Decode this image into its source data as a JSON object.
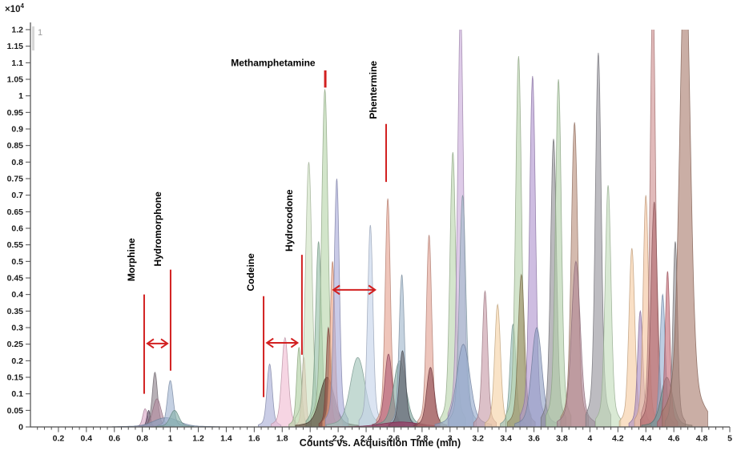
{
  "chart_data": {
    "type": "area",
    "title": "",
    "pane_label": "1",
    "x": {
      "min": 0,
      "max": 5,
      "major_step": 0.2,
      "minor_step": 0.05,
      "label": "Counts vs. Acquisition Time (min)"
    },
    "y": {
      "min": 0,
      "max": 1.2,
      "major_step": 0.05
    },
    "y_scale": {
      "mantissa": "×10",
      "exponent": "4"
    },
    "x_tick_labels": [
      "0.2",
      "0.4",
      "0.6",
      "0.8",
      "1",
      "1.2",
      "1.4",
      "1.6",
      "1.8",
      "2",
      "2.2",
      "2.4",
      "2.6",
      "2.8",
      "3",
      "3.2",
      "3.4",
      "3.6",
      "3.8",
      "4",
      "4.2",
      "4.4",
      "4.6",
      "4.8",
      "5"
    ],
    "y_tick_labels": [
      "0",
      "0.05",
      "0.1",
      "0.15",
      "0.2",
      "0.25",
      "0.3",
      "0.35",
      "0.4",
      "0.45",
      "0.5",
      "0.55",
      "0.6",
      "0.65",
      "0.7",
      "0.75",
      "0.8",
      "0.85",
      "0.9",
      "0.95",
      "1",
      "1.05",
      "1.1",
      "1.15",
      "1.2"
    ],
    "annotation_color": "#d22020",
    "axis_color": "#4d4d4d",
    "peaks": [
      {
        "t": 0.82,
        "h": 0.055,
        "s": 0.016,
        "c": "#d9a7c6"
      },
      {
        "t": 0.845,
        "h": 0.05,
        "s": 0.012,
        "c": "#5f4b66"
      },
      {
        "t": 0.89,
        "h": 0.165,
        "s": 0.018,
        "c": "#8a8089"
      },
      {
        "t": 0.905,
        "h": 0.085,
        "s": 0.028,
        "c": "#b38ba0"
      },
      {
        "t": 0.97,
        "h": 0.028,
        "s": 0.085,
        "c": "#8ca3c4"
      },
      {
        "t": 1.0,
        "h": 0.14,
        "s": 0.02,
        "c": "#9fb3d1"
      },
      {
        "t": 1.03,
        "h": 0.05,
        "s": 0.03,
        "c": "#85b0a8"
      },
      {
        "t": 1.71,
        "h": 0.19,
        "s": 0.018,
        "c": "#a9aed6"
      },
      {
        "t": 1.82,
        "h": 0.27,
        "s": 0.022,
        "c": "#f0bcd2"
      },
      {
        "t": 1.92,
        "h": 0.24,
        "s": 0.016,
        "c": "#afcfa0"
      },
      {
        "t": 1.955,
        "h": 0.21,
        "s": 0.013,
        "c": "#eaa9a2"
      },
      {
        "t": 1.99,
        "h": 0.8,
        "s": 0.022,
        "c": "#cfe2c2"
      },
      {
        "t": 2.06,
        "h": 0.56,
        "s": 0.02,
        "c": "#95bfa6"
      },
      {
        "t": 2.105,
        "h": 1.02,
        "s": 0.022,
        "c": "#b7d5aa"
      },
      {
        "t": 2.12,
        "h": 0.15,
        "s": 0.05,
        "c": "#584439"
      },
      {
        "t": 2.13,
        "h": 0.3,
        "s": 0.015,
        "c": "#9a4f46"
      },
      {
        "t": 2.16,
        "h": 0.5,
        "s": 0.016,
        "c": "#eda183"
      },
      {
        "t": 2.19,
        "h": 0.75,
        "s": 0.018,
        "c": "#a8aad8"
      },
      {
        "t": 2.34,
        "h": 0.21,
        "s": 0.05,
        "c": "#9fc4b8"
      },
      {
        "t": 2.43,
        "h": 0.61,
        "s": 0.018,
        "c": "#c5d4ea"
      },
      {
        "t": 2.555,
        "h": 0.69,
        "s": 0.018,
        "c": "#e5a28f"
      },
      {
        "t": 2.56,
        "h": 0.22,
        "s": 0.026,
        "c": "#b05a74"
      },
      {
        "t": 2.64,
        "h": 0.2,
        "s": 0.042,
        "c": "#7fa79e"
      },
      {
        "t": 2.655,
        "h": 0.46,
        "s": 0.018,
        "c": "#9fb6cc"
      },
      {
        "t": 2.66,
        "h": 0.23,
        "s": 0.022,
        "c": "#5f5f66"
      },
      {
        "t": 2.65,
        "h": 0.015,
        "s": 0.13,
        "c": "#a03060"
      },
      {
        "t": 2.85,
        "h": 0.58,
        "s": 0.018,
        "c": "#e2a293"
      },
      {
        "t": 2.86,
        "h": 0.18,
        "s": 0.026,
        "c": "#8e4a52"
      },
      {
        "t": 3.02,
        "h": 0.83,
        "s": 0.02,
        "c": "#b9d5ad"
      },
      {
        "t": 3.075,
        "h": 1.26,
        "s": 0.02,
        "c": "#c9abda"
      },
      {
        "t": 3.09,
        "h": 0.7,
        "s": 0.022,
        "c": "#a3bccb"
      },
      {
        "t": 3.095,
        "h": 0.25,
        "s": 0.045,
        "c": "#93a8cc"
      },
      {
        "t": 3.25,
        "h": 0.41,
        "s": 0.018,
        "c": "#c79aa6"
      },
      {
        "t": 3.34,
        "h": 0.37,
        "s": 0.02,
        "c": "#f6d2a4"
      },
      {
        "t": 3.45,
        "h": 0.31,
        "s": 0.02,
        "c": "#93bdb4"
      },
      {
        "t": 3.49,
        "h": 1.12,
        "s": 0.02,
        "c": "#b8d4ac"
      },
      {
        "t": 3.51,
        "h": 0.46,
        "s": 0.022,
        "c": "#9c8d62"
      },
      {
        "t": 3.59,
        "h": 1.06,
        "s": 0.02,
        "c": "#b094cf"
      },
      {
        "t": 3.62,
        "h": 0.3,
        "s": 0.035,
        "c": "#8f9ec4"
      },
      {
        "t": 3.74,
        "h": 0.87,
        "s": 0.02,
        "c": "#8f8e94"
      },
      {
        "t": 3.775,
        "h": 1.05,
        "s": 0.02,
        "c": "#b3d1aa"
      },
      {
        "t": 3.89,
        "h": 0.92,
        "s": 0.022,
        "c": "#b98f7c"
      },
      {
        "t": 3.9,
        "h": 0.5,
        "s": 0.03,
        "c": "#b08898"
      },
      {
        "t": 4.06,
        "h": 1.13,
        "s": 0.02,
        "c": "#95939b"
      },
      {
        "t": 4.13,
        "h": 0.73,
        "s": 0.02,
        "c": "#c2dbba"
      },
      {
        "t": 4.3,
        "h": 0.54,
        "s": 0.02,
        "c": "#f6cca1"
      },
      {
        "t": 4.36,
        "h": 0.35,
        "s": 0.018,
        "c": "#a98bc0"
      },
      {
        "t": 4.4,
        "h": 0.7,
        "s": 0.018,
        "c": "#f3c39d"
      },
      {
        "t": 4.45,
        "h": 1.32,
        "s": 0.018,
        "c": "#cf9090"
      },
      {
        "t": 4.46,
        "h": 0.68,
        "s": 0.022,
        "c": "#b06a70"
      },
      {
        "t": 4.52,
        "h": 0.4,
        "s": 0.018,
        "c": "#94aed0"
      },
      {
        "t": 4.55,
        "h": 0.15,
        "s": 0.04,
        "c": "#6f8f8a"
      },
      {
        "t": 4.555,
        "h": 0.47,
        "s": 0.016,
        "c": "#c56a76"
      },
      {
        "t": 4.61,
        "h": 0.56,
        "s": 0.016,
        "c": "#8f8d92"
      },
      {
        "t": 4.68,
        "h": 1.45,
        "s": 0.036,
        "c": "#a97c6e"
      }
    ],
    "annotations": [
      {
        "label": "Morphine",
        "vertical": true,
        "line": {
          "t": 0.813,
          "v_top": 0.4,
          "v_bot": 0.1
        },
        "label_at": {
          "t": 0.813,
          "v": 0.44
        }
      },
      {
        "label": "Hydromorphone",
        "vertical": true,
        "line": {
          "t": 1.002,
          "v_top": 0.475,
          "v_bot": 0.17
        },
        "label_at": {
          "t": 1.002,
          "v": 0.485
        }
      },
      {
        "label": "Codeine",
        "vertical": true,
        "line": {
          "t": 1.667,
          "v_top": 0.395,
          "v_bot": 0.09
        },
        "label_at": {
          "t": 1.667,
          "v": 0.41
        }
      },
      {
        "label": "Hydrocodone",
        "vertical": true,
        "line": {
          "t": 1.941,
          "v_top": 0.52,
          "v_bot": 0.218
        },
        "label_at": {
          "t": 1.941,
          "v": 0.53
        }
      },
      {
        "label": "Methamphetamine",
        "vertical": false,
        "line": {
          "t": 2.108,
          "v_top": 1.077,
          "v_bot": 1.025
        },
        "label_at": {
          "t": 1.735,
          "v": 1.09
        }
      },
      {
        "label": "Phentermine",
        "vertical": true,
        "line": {
          "t": 2.543,
          "v_top": 0.915,
          "v_bot": 0.74
        },
        "label_at": {
          "t": 2.543,
          "v": 0.93
        }
      }
    ],
    "arrows": [
      {
        "t1": 0.83,
        "t2": 0.985,
        "v": 0.252
      },
      {
        "t1": 1.685,
        "t2": 1.915,
        "v": 0.254
      },
      {
        "t1": 2.16,
        "t2": 2.47,
        "v": 0.414
      }
    ]
  }
}
